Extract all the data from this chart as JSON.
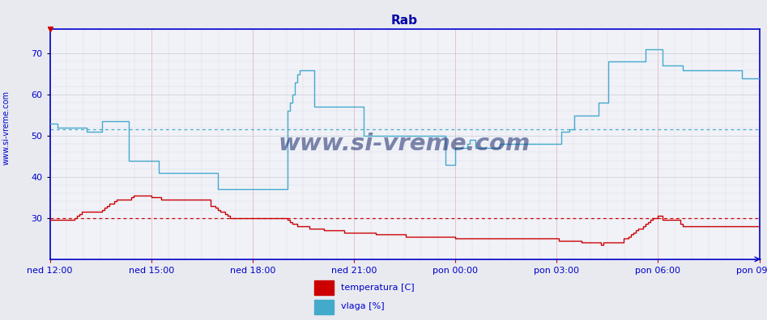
{
  "title": "Rab",
  "title_color": "#0000aa",
  "bg_color": "#e8eaf0",
  "plot_bg_color": "#f0f2f8",
  "grid_h_color": "#c8ccd8",
  "grid_v_color": "#e0b0b0",
  "axis_color": "#0000cc",
  "tick_color": "#cc0000",
  "watermark": "www.si-vreme.com",
  "watermark_color": "#1a2a6c",
  "side_label": "www.si-vreme.com",
  "xlabel_ticks": [
    "ned 12:00",
    "ned 15:00",
    "ned 18:00",
    "ned 21:00",
    "pon 00:00",
    "pon 03:00",
    "pon 06:00",
    "pon 09:00"
  ],
  "ylim_min": 20,
  "ylim_max": 76,
  "yticks": [
    30,
    40,
    50,
    60,
    70
  ],
  "temp_color": "#cc0000",
  "humid_color": "#44aacc",
  "legend_temp_label": "temperatura [C]",
  "legend_humid_label": "vlaga [%]",
  "temp_avg": 30.0,
  "humid_avg": 51.5,
  "temp_data": [
    29.5,
    29.5,
    29.5,
    29.5,
    29.5,
    29.5,
    29.5,
    29.5,
    29.5,
    29.5,
    30.0,
    30.5,
    31.0,
    31.5,
    31.5,
    31.5,
    31.5,
    31.5,
    31.5,
    31.5,
    31.5,
    32.0,
    32.5,
    33.0,
    33.5,
    33.5,
    34.0,
    34.5,
    34.5,
    34.5,
    34.5,
    34.5,
    34.5,
    35.0,
    35.5,
    35.5,
    35.5,
    35.5,
    35.5,
    35.5,
    35.5,
    35.0,
    35.0,
    35.0,
    35.0,
    34.5,
    34.5,
    34.5,
    34.5,
    34.5,
    34.5,
    34.5,
    34.5,
    34.5,
    34.5,
    34.5,
    34.5,
    34.5,
    34.5,
    34.5,
    34.5,
    34.5,
    34.5,
    34.5,
    34.5,
    33.0,
    33.0,
    32.5,
    32.0,
    31.5,
    31.5,
    31.0,
    30.5,
    30.0,
    30.0,
    30.0,
    30.0,
    30.0,
    30.0,
    30.0,
    30.0,
    30.0,
    30.0,
    30.0,
    30.0,
    30.0,
    30.0,
    30.0,
    30.0,
    30.0,
    30.0,
    30.0,
    30.0,
    30.0,
    30.0,
    30.0,
    29.5,
    29.0,
    28.5,
    28.5,
    28.0,
    28.0,
    28.0,
    28.0,
    28.0,
    27.5,
    27.5,
    27.5,
    27.5,
    27.5,
    27.5,
    27.0,
    27.0,
    27.0,
    27.0,
    27.0,
    27.0,
    27.0,
    27.0,
    26.5,
    26.5,
    26.5,
    26.5,
    26.5,
    26.5,
    26.5,
    26.5,
    26.5,
    26.5,
    26.5,
    26.5,
    26.5,
    26.0,
    26.0,
    26.0,
    26.0,
    26.0,
    26.0,
    26.0,
    26.0,
    26.0,
    26.0,
    26.0,
    26.0,
    25.5,
    25.5,
    25.5,
    25.5,
    25.5,
    25.5,
    25.5,
    25.5,
    25.5,
    25.5,
    25.5,
    25.5,
    25.5,
    25.5,
    25.5,
    25.5,
    25.5,
    25.5,
    25.5,
    25.5,
    25.0,
    25.0,
    25.0,
    25.0,
    25.0,
    25.0,
    25.0,
    25.0,
    25.0,
    25.0,
    25.0,
    25.0,
    25.0,
    25.0,
    25.0,
    25.0,
    25.0,
    25.0,
    25.0,
    25.0,
    25.0,
    25.0,
    25.0,
    25.0,
    25.0,
    25.0,
    25.0,
    25.0,
    25.0,
    25.0,
    25.0,
    25.0,
    25.0,
    25.0,
    25.0,
    25.0,
    25.0,
    25.0,
    25.0,
    25.0,
    25.0,
    25.0,
    24.5,
    24.5,
    24.5,
    24.5,
    24.5,
    24.5,
    24.5,
    24.5,
    24.5,
    24.0,
    24.0,
    24.0,
    24.0,
    24.0,
    24.0,
    24.0,
    24.0,
    23.5,
    24.0,
    24.0,
    24.0,
    24.0,
    24.0,
    24.0,
    24.0,
    24.0,
    25.0,
    25.0,
    25.5,
    26.0,
    26.5,
    27.0,
    27.5,
    27.5,
    28.0,
    28.5,
    29.0,
    29.5,
    30.0,
    30.0,
    30.5,
    30.5,
    29.5,
    29.5,
    29.5,
    29.5,
    29.5,
    29.5,
    29.5,
    28.5,
    28.0,
    28.0,
    28.0,
    28.0,
    28.0,
    28.0,
    28.0,
    28.0,
    28.0,
    28.0,
    28.0,
    28.0,
    28.0,
    28.0,
    28.0,
    28.0,
    28.0,
    28.0,
    28.0,
    28.0,
    28.0,
    28.0,
    28.0,
    28.0,
    28.0,
    28.0,
    28.0,
    28.0,
    28.0,
    28.0,
    28.0,
    28.0
  ],
  "humid_data": [
    53.0,
    53.0,
    53.0,
    52.0,
    52.0,
    52.0,
    52.0,
    52.0,
    52.0,
    52.0,
    52.0,
    52.0,
    52.0,
    52.0,
    52.0,
    51.0,
    51.0,
    51.0,
    51.0,
    51.0,
    51.0,
    53.5,
    53.5,
    53.5,
    53.5,
    53.5,
    53.5,
    53.5,
    53.5,
    53.5,
    53.5,
    53.5,
    44.0,
    44.0,
    44.0,
    44.0,
    44.0,
    44.0,
    44.0,
    44.0,
    44.0,
    44.0,
    44.0,
    44.0,
    41.0,
    41.0,
    41.0,
    41.0,
    41.0,
    41.0,
    41.0,
    41.0,
    41.0,
    41.0,
    41.0,
    41.0,
    41.0,
    41.0,
    41.0,
    41.0,
    41.0,
    41.0,
    41.0,
    41.0,
    41.0,
    41.0,
    41.0,
    41.0,
    37.0,
    37.0,
    37.0,
    37.0,
    37.0,
    37.0,
    37.0,
    37.0,
    37.0,
    37.0,
    37.0,
    37.0,
    37.0,
    37.0,
    37.0,
    37.0,
    37.0,
    37.0,
    37.0,
    37.0,
    37.0,
    37.0,
    37.0,
    37.0,
    37.0,
    37.0,
    37.0,
    37.0,
    56.0,
    58.0,
    60.0,
    63.0,
    65.0,
    66.0,
    66.0,
    66.0,
    66.0,
    66.0,
    66.0,
    57.0,
    57.0,
    57.0,
    57.0,
    57.0,
    57.0,
    57.0,
    57.0,
    57.0,
    57.0,
    57.0,
    57.0,
    57.0,
    57.0,
    57.0,
    57.0,
    57.0,
    57.0,
    57.0,
    57.0,
    50.0,
    50.0,
    50.0,
    50.0,
    50.0,
    50.0,
    50.0,
    50.0,
    50.0,
    50.0,
    50.0,
    50.0,
    50.0,
    50.0,
    50.0,
    50.0,
    50.0,
    50.0,
    50.0,
    50.0,
    50.0,
    50.0,
    50.0,
    50.0,
    50.0,
    50.0,
    50.0,
    50.0,
    50.0,
    50.0,
    50.0,
    50.0,
    50.0,
    43.0,
    43.0,
    43.0,
    43.0,
    47.0,
    47.0,
    47.0,
    47.0,
    47.0,
    48.0,
    49.0,
    49.0,
    47.0,
    47.0,
    47.0,
    47.0,
    47.0,
    47.0,
    47.0,
    47.0,
    47.0,
    47.0,
    48.0,
    48.0,
    48.0,
    48.0,
    48.0,
    48.0,
    48.0,
    48.0,
    48.0,
    48.0,
    48.0,
    48.0,
    48.0,
    48.0,
    48.0,
    48.0,
    48.0,
    48.0,
    48.0,
    48.0,
    48.0,
    48.0,
    48.0,
    48.0,
    48.0,
    51.0,
    51.0,
    51.0,
    51.5,
    51.5,
    55.0,
    55.0,
    55.0,
    55.0,
    55.0,
    55.0,
    55.0,
    55.0,
    55.0,
    55.0,
    58.0,
    58.0,
    58.0,
    58.0,
    68.0,
    68.0,
    68.0,
    68.0,
    68.0,
    68.0,
    68.0,
    68.0,
    68.0,
    68.0,
    68.0,
    68.0,
    68.0,
    68.0,
    68.0,
    71.0,
    71.0,
    71.0,
    71.0,
    71.0,
    71.0,
    71.0,
    67.0,
    67.0,
    67.0,
    67.0,
    67.0,
    67.0,
    67.0,
    67.0,
    66.0,
    66.0,
    66.0,
    66.0,
    66.0,
    66.0,
    66.0,
    66.0,
    66.0,
    66.0,
    66.0,
    66.0,
    66.0,
    66.0,
    66.0,
    66.0,
    66.0,
    66.0,
    66.0,
    66.0,
    66.0,
    66.0,
    66.0,
    66.0,
    64.0,
    64.0,
    64.0,
    64.0,
    64.0,
    64.0,
    64.0,
    64.0
  ]
}
